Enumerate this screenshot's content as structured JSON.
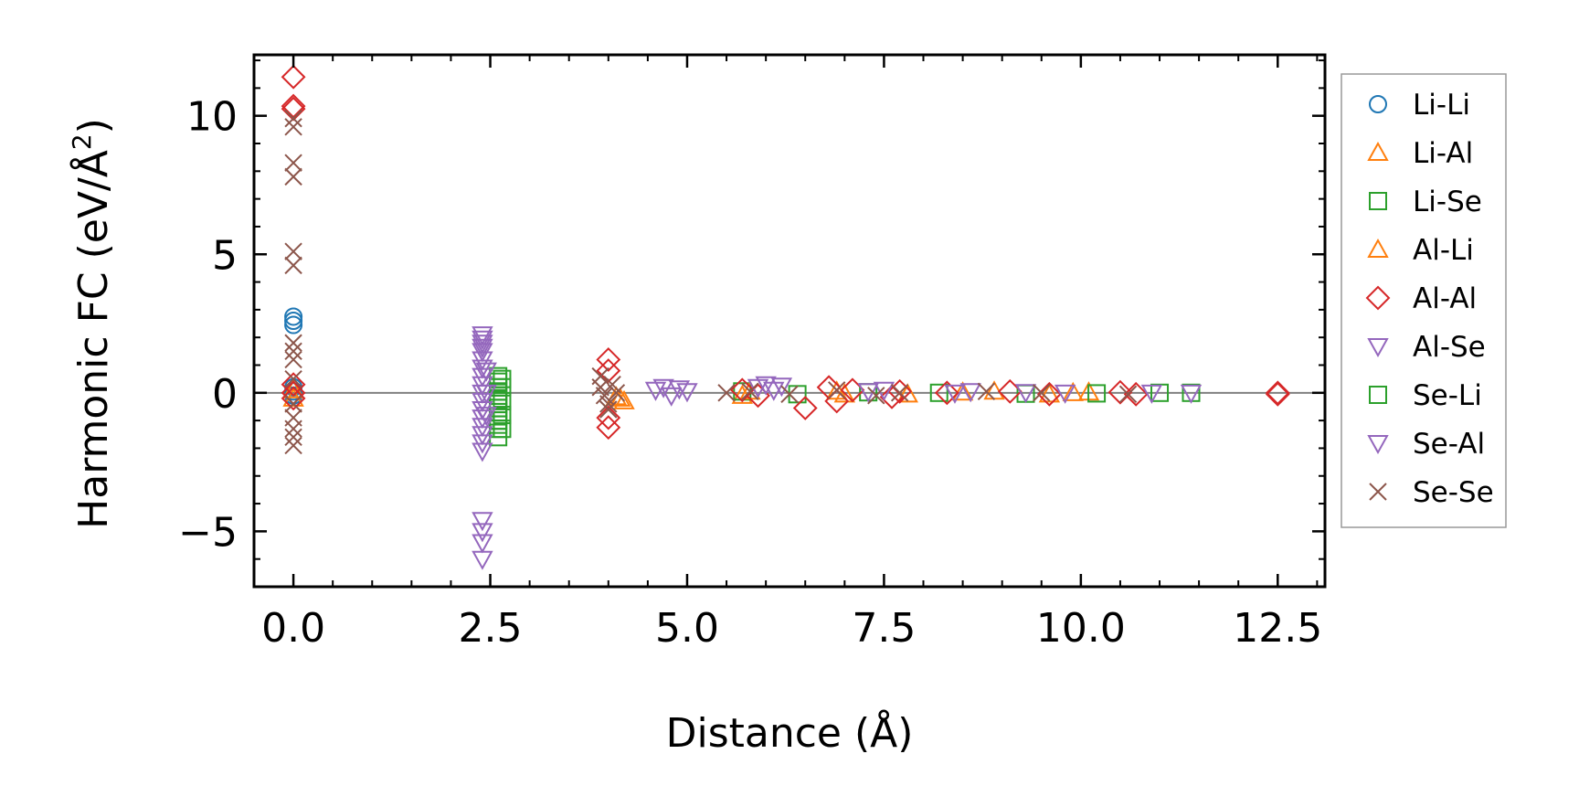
{
  "chart_data": {
    "type": "scatter",
    "xlabel": "Distance (Å)",
    "ylabel": "Harmonic FC (eV/Å",
    "ylabel_sup": "2",
    "ylabel_close": ")",
    "xlim": [
      -0.5,
      13.1
    ],
    "ylim": [
      -7,
      12.2
    ],
    "x_ticks": [
      0.0,
      2.5,
      5.0,
      7.5,
      10.0,
      12.5
    ],
    "x_tick_labels": [
      "0.0",
      "2.5",
      "5.0",
      "7.5",
      "10.0",
      "12.5"
    ],
    "y_ticks": [
      -5,
      0,
      5,
      10
    ],
    "y_tick_labels": [
      "−5",
      "0",
      "5",
      "10"
    ],
    "zero_line": true,
    "grid": false,
    "legend_position": "right",
    "series": [
      {
        "name": "Li-Li",
        "marker": "circle",
        "color": "#1f77b4",
        "x": [
          0,
          0,
          0,
          0,
          0,
          0
        ],
        "y": [
          2.75,
          2.6,
          2.45,
          0.2,
          0.05,
          -0.1
        ]
      },
      {
        "name": "Li-Al",
        "marker": "triangle-up",
        "color": "#ff7f0e",
        "x": [
          0,
          4.1,
          4.2,
          5.7,
          6.9,
          7.8,
          8.9,
          9.6,
          10.1
        ],
        "y": [
          0.1,
          -0.15,
          -0.3,
          -0.1,
          0.05,
          -0.05,
          0.05,
          -0.05,
          0.02
        ]
      },
      {
        "name": "Li-Se",
        "marker": "square",
        "color": "#2ca02c",
        "x": [
          2.6,
          2.6,
          2.6,
          2.6,
          2.6,
          2.6,
          2.6,
          2.6,
          2.6,
          2.6,
          2.6,
          2.6,
          2.6,
          2.6,
          5.7,
          6.4,
          7.3,
          8.2,
          9.3,
          10.2,
          11.0,
          11.4
        ],
        "y": [
          0.6,
          0.4,
          0.2,
          0.05,
          -0.1,
          -0.25,
          -0.4,
          -0.55,
          -0.7,
          -0.85,
          -1.0,
          -1.15,
          -1.3,
          -1.6,
          0.05,
          -0.05,
          0.02,
          0.0,
          -0.03,
          -0.02,
          0.0,
          0.0
        ]
      },
      {
        "name": "Al-Li",
        "marker": "triangle-up",
        "color": "#ff7f0e",
        "x": [
          0,
          4.15,
          5.8,
          7.0,
          8.5,
          9.9
        ],
        "y": [
          -0.2,
          -0.2,
          0.05,
          -0.05,
          0.02,
          0.0
        ]
      },
      {
        "name": "Al-Al",
        "marker": "diamond",
        "color": "#d62728",
        "x": [
          0,
          0,
          0,
          0,
          0,
          0,
          4.0,
          4.0,
          4.0,
          4.0,
          5.7,
          5.9,
          6.5,
          6.8,
          6.9,
          7.1,
          7.6,
          7.7,
          8.3,
          9.1,
          9.6,
          10.5,
          10.7,
          12.5,
          12.5
        ],
        "y": [
          11.4,
          10.35,
          10.25,
          0.3,
          0.0,
          -0.2,
          1.2,
          0.8,
          -0.9,
          -1.25,
          0.1,
          -0.1,
          -0.55,
          0.2,
          -0.3,
          0.1,
          -0.15,
          0.05,
          0.0,
          0.05,
          -0.05,
          0.02,
          -0.05,
          0.0,
          -0.05
        ]
      },
      {
        "name": "Al-Se",
        "marker": "triangle-down",
        "color": "#9467bd",
        "x": [
          2.4,
          2.4,
          2.4,
          2.4,
          2.4,
          2.4,
          2.4,
          2.4,
          2.4,
          2.4,
          2.4,
          2.4,
          2.4,
          2.4,
          2.4,
          2.4,
          2.4,
          2.4,
          2.4,
          2.4,
          2.4
        ],
        "y": [
          2.1,
          1.95,
          1.8,
          1.65,
          1.5,
          1.2,
          0.9,
          0.6,
          0.3,
          0.0,
          -0.3,
          -0.6,
          -0.9,
          -1.2,
          -1.5,
          -1.8,
          -2.1,
          -4.6,
          -5.0,
          -5.4,
          -6.0
        ]
      },
      {
        "name": "Se-Li",
        "marker": "square",
        "color": "#2ca02c",
        "x": [
          2.65,
          2.65,
          2.65,
          2.65,
          2.65
        ],
        "y": [
          0.5,
          0.2,
          -0.3,
          -0.8,
          -1.3
        ]
      },
      {
        "name": "Se-Al",
        "marker": "triangle-down",
        "color": "#9467bd",
        "x": [
          2.45,
          2.45,
          2.45,
          4.6,
          4.7,
          4.8,
          4.9,
          5.0,
          5.9,
          6.0,
          6.1,
          6.2,
          7.3,
          7.5,
          8.4,
          8.6,
          9.3,
          9.8,
          10.9,
          11.4
        ],
        "y": [
          0.8,
          0.0,
          -0.8,
          0.1,
          0.2,
          -0.1,
          0.15,
          0.05,
          0.2,
          0.3,
          0.1,
          0.25,
          0.05,
          0.1,
          0.0,
          0.05,
          0.02,
          0.0,
          0.0,
          0.0
        ]
      },
      {
        "name": "Se-Se",
        "marker": "x",
        "color": "#8c564b",
        "x": [
          0,
          0,
          0,
          0,
          0,
          0,
          0,
          0,
          0,
          0,
          0,
          0,
          0,
          0,
          0,
          3.9,
          3.9,
          3.95,
          4.0,
          4.0,
          4.05,
          4.1,
          5.5,
          5.8,
          6.3,
          6.9,
          7.4,
          7.7,
          8.8,
          9.5,
          10.6
        ],
        "y": [
          9.9,
          9.6,
          8.3,
          7.8,
          5.1,
          4.6,
          1.8,
          1.5,
          1.2,
          0.5,
          -0.4,
          -0.9,
          -1.3,
          -1.6,
          -1.9,
          0.6,
          0.2,
          -0.1,
          -0.4,
          -0.6,
          0.3,
          0.0,
          0.0,
          0.05,
          -0.05,
          0.1,
          -0.1,
          0.0,
          0.05,
          0.0,
          -0.05
        ]
      }
    ]
  }
}
